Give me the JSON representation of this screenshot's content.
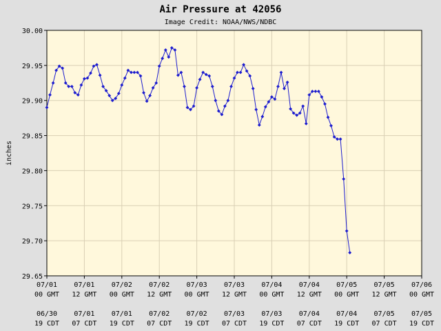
{
  "chart_data": {
    "type": "line",
    "title": "Air Pressure at 42056",
    "subtitle": "Image Credit: NOAA/NWS/NDBC",
    "ylabel": "inches",
    "ylim": [
      29.65,
      30.0
    ],
    "yticks": [
      "30.00",
      "29.95",
      "29.90",
      "29.85",
      "29.80",
      "29.75",
      "29.70",
      "29.65"
    ],
    "xlim": [
      0,
      120
    ],
    "xticks": [
      {
        "x": 0,
        "gmt": [
          "07/01",
          "00 GMT"
        ],
        "local": [
          "06/30",
          "19 CDT"
        ]
      },
      {
        "x": 12,
        "gmt": [
          "07/01",
          "12 GMT"
        ],
        "local": [
          "07/01",
          "07 CDT"
        ]
      },
      {
        "x": 24,
        "gmt": [
          "07/02",
          "00 GMT"
        ],
        "local": [
          "07/01",
          "19 CDT"
        ]
      },
      {
        "x": 36,
        "gmt": [
          "07/02",
          "12 GMT"
        ],
        "local": [
          "07/02",
          "07 CDT"
        ]
      },
      {
        "x": 48,
        "gmt": [
          "07/03",
          "00 GMT"
        ],
        "local": [
          "07/02",
          "19 CDT"
        ]
      },
      {
        "x": 60,
        "gmt": [
          "07/03",
          "12 GMT"
        ],
        "local": [
          "07/03",
          "07 CDT"
        ]
      },
      {
        "x": 72,
        "gmt": [
          "07/04",
          "00 GMT"
        ],
        "local": [
          "07/03",
          "19 CDT"
        ]
      },
      {
        "x": 84,
        "gmt": [
          "07/04",
          "12 GMT"
        ],
        "local": [
          "07/04",
          "07 CDT"
        ]
      },
      {
        "x": 96,
        "gmt": [
          "07/05",
          "00 GMT"
        ],
        "local": [
          "07/04",
          "19 CDT"
        ]
      },
      {
        "x": 108,
        "gmt": [
          "07/05",
          "12 GMT"
        ],
        "local": [
          "07/05",
          "07 CDT"
        ]
      },
      {
        "x": 120,
        "gmt": [
          "07/06",
          "00 GMT"
        ],
        "local": [
          "07/05",
          "19 CDT"
        ]
      }
    ],
    "grid": true,
    "series": [
      {
        "color": "#1c1ccf",
        "points": [
          [
            0,
            29.89
          ],
          [
            1,
            29.908
          ],
          [
            2,
            29.925
          ],
          [
            3,
            29.943
          ],
          [
            4,
            29.949
          ],
          [
            5,
            29.946
          ],
          [
            6,
            29.925
          ],
          [
            7,
            29.92
          ],
          [
            8,
            29.92
          ],
          [
            9,
            29.911
          ],
          [
            10,
            29.908
          ],
          [
            11,
            29.922
          ],
          [
            12,
            29.931
          ],
          [
            13,
            29.932
          ],
          [
            14,
            29.939
          ],
          [
            15,
            29.949
          ],
          [
            16,
            29.951
          ],
          [
            17,
            29.936
          ],
          [
            18,
            29.92
          ],
          [
            19,
            29.914
          ],
          [
            20,
            29.907
          ],
          [
            21,
            29.9
          ],
          [
            22,
            29.903
          ],
          [
            23,
            29.91
          ],
          [
            24,
            29.922
          ],
          [
            25,
            29.932
          ],
          [
            26,
            29.943
          ],
          [
            27,
            29.94
          ],
          [
            28,
            29.94
          ],
          [
            29,
            29.94
          ],
          [
            30,
            29.935
          ],
          [
            31,
            29.911
          ],
          [
            32,
            29.899
          ],
          [
            33,
            29.907
          ],
          [
            34,
            29.918
          ],
          [
            35,
            29.925
          ],
          [
            36,
            29.949
          ],
          [
            37,
            29.96
          ],
          [
            38,
            29.972
          ],
          [
            39,
            29.962
          ],
          [
            40,
            29.975
          ],
          [
            41,
            29.972
          ],
          [
            42,
            29.936
          ],
          [
            43,
            29.94
          ],
          [
            44,
            29.92
          ],
          [
            45,
            29.89
          ],
          [
            46,
            29.887
          ],
          [
            47,
            29.892
          ],
          [
            48,
            29.918
          ],
          [
            49,
            29.93
          ],
          [
            50,
            29.94
          ],
          [
            51,
            29.937
          ],
          [
            52,
            29.935
          ],
          [
            53,
            29.92
          ],
          [
            54,
            29.9
          ],
          [
            55,
            29.885
          ],
          [
            56,
            29.88
          ],
          [
            57,
            29.892
          ],
          [
            58,
            29.9
          ],
          [
            59,
            29.92
          ],
          [
            60,
            29.932
          ],
          [
            61,
            29.94
          ],
          [
            62,
            29.94
          ],
          [
            63,
            29.951
          ],
          [
            64,
            29.942
          ],
          [
            65,
            29.935
          ],
          [
            66,
            29.917
          ],
          [
            67,
            29.887
          ],
          [
            68,
            29.865
          ],
          [
            69,
            29.877
          ],
          [
            70,
            29.891
          ],
          [
            71,
            29.898
          ],
          [
            72,
            29.905
          ],
          [
            73,
            29.902
          ],
          [
            74,
            29.92
          ],
          [
            75,
            29.94
          ],
          [
            76,
            29.917
          ],
          [
            77,
            29.926
          ],
          [
            78,
            29.888
          ],
          [
            79,
            29.882
          ],
          [
            80,
            29.879
          ],
          [
            81,
            29.882
          ],
          [
            82,
            29.892
          ],
          [
            83,
            29.867
          ],
          [
            84,
            29.908
          ],
          [
            85,
            29.913
          ],
          [
            86,
            29.913
          ],
          [
            87,
            29.913
          ],
          [
            88,
            29.905
          ],
          [
            89,
            29.895
          ],
          [
            90,
            29.876
          ],
          [
            91,
            29.864
          ],
          [
            92,
            29.848
          ],
          [
            93,
            29.845
          ],
          [
            94,
            29.845
          ],
          [
            95,
            29.788
          ],
          [
            96,
            29.714
          ],
          [
            97,
            29.683
          ]
        ]
      }
    ]
  }
}
